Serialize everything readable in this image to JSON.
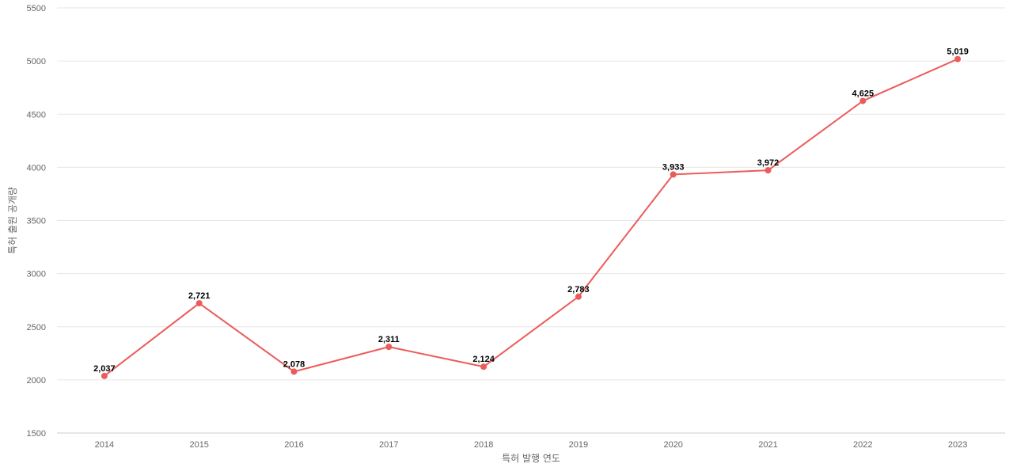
{
  "chart_data": {
    "type": "line",
    "title": "",
    "xlabel": "특허 발행 연도",
    "ylabel": "특허 출원 공개량",
    "categories": [
      "2014",
      "2015",
      "2016",
      "2017",
      "2018",
      "2019",
      "2020",
      "2021",
      "2022",
      "2023"
    ],
    "series": [
      {
        "values": [
          2037,
          2721,
          2078,
          2311,
          2124,
          2783,
          3933,
          3972,
          4625,
          5019
        ],
        "labels": [
          "2,037",
          "2,721",
          "2,078",
          "2,311",
          "2,124",
          "2,783",
          "3,933",
          "3,972",
          "4,625",
          "5,019"
        ],
        "color": "#ec5b5b"
      }
    ],
    "ylim": [
      1500,
      5500
    ],
    "yticks": [
      "1500",
      "2000",
      "2500",
      "3000",
      "3500",
      "4000",
      "4500",
      "5000",
      "5500"
    ],
    "grid": true,
    "legend": "none"
  }
}
